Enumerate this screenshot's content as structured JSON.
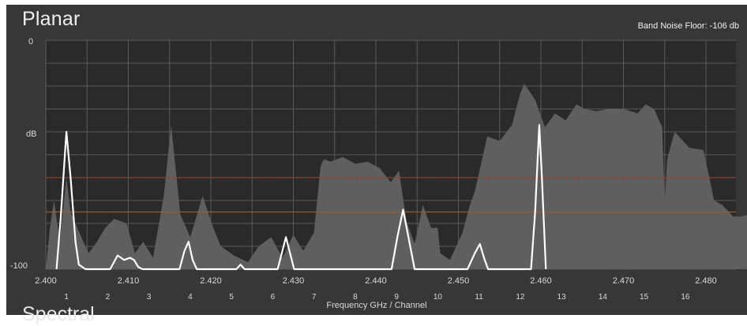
{
  "panel": {
    "title": "Planar",
    "noise_floor_label": "Band Noise Floor: -106 db",
    "next_section_title": "Spectral"
  },
  "colors": {
    "panel_bg": "#373737",
    "plot_bg": "#2a2a2a",
    "grid": "#5a5a5a",
    "energy_fill": "#5f5f5f",
    "signal_line": "#ffffff",
    "threshold_red": "#9b3a2e",
    "threshold_orange": "#9a5a30"
  },
  "chart_data": {
    "type": "line",
    "y_axis": {
      "label": "dB",
      "tick_top": "0",
      "tick_bottom": "-100",
      "ylim": [
        -100,
        0
      ]
    },
    "x_axis": {
      "label": "Frequency GHz / Channel",
      "frequency_ticks": [
        "2.400",
        "2.410",
        "2.420",
        "2.430",
        "2.440",
        "2.450",
        "2.460",
        "2.470",
        "2.480"
      ],
      "channel_ticks": [
        "1",
        "2",
        "3",
        "4",
        "5",
        "6",
        "7",
        "8",
        "9",
        "10",
        "11",
        "12",
        "13",
        "14",
        "15",
        "16"
      ],
      "xlim": [
        2.4,
        2.485
      ]
    },
    "grid": true,
    "thresholds_db": [
      -60,
      -75
    ],
    "series": [
      {
        "type": "area",
        "points": [
          [
            2.4,
            -100
          ],
          [
            2.4005,
            -82
          ],
          [
            2.401,
            -70
          ],
          [
            2.4017,
            -88
          ],
          [
            2.4025,
            -60
          ],
          [
            2.403,
            -75
          ],
          [
            2.4043,
            -86
          ],
          [
            2.4052,
            -93
          ],
          [
            2.4062,
            -88
          ],
          [
            2.4072,
            -82
          ],
          [
            2.4083,
            -78
          ],
          [
            2.4098,
            -80
          ],
          [
            2.4108,
            -93
          ],
          [
            2.4118,
            -88
          ],
          [
            2.413,
            -95
          ],
          [
            2.4143,
            -68
          ],
          [
            2.4152,
            -37
          ],
          [
            2.4163,
            -76
          ],
          [
            2.4175,
            -86
          ],
          [
            2.419,
            -68
          ],
          [
            2.4202,
            -81
          ],
          [
            2.4212,
            -90
          ],
          [
            2.4228,
            -94
          ],
          [
            2.4245,
            -97
          ],
          [
            2.4258,
            -90
          ],
          [
            2.4273,
            -86
          ],
          [
            2.4287,
            -95
          ],
          [
            2.43,
            -85
          ],
          [
            2.4312,
            -92
          ],
          [
            2.4325,
            -84
          ],
          [
            2.4333,
            -55
          ],
          [
            2.4337,
            -52
          ],
          [
            2.4345,
            -53
          ],
          [
            2.436,
            -51
          ],
          [
            2.4375,
            -54
          ],
          [
            2.439,
            -53
          ],
          [
            2.4405,
            -56
          ],
          [
            2.4418,
            -62
          ],
          [
            2.4428,
            -57
          ],
          [
            2.4437,
            -79
          ],
          [
            2.4447,
            -89
          ],
          [
            2.4457,
            -72
          ],
          [
            2.4467,
            -82
          ],
          [
            2.4475,
            -82
          ],
          [
            2.4478,
            -93
          ],
          [
            2.449,
            -96
          ],
          [
            2.4505,
            -84
          ],
          [
            2.4514,
            -72
          ],
          [
            2.452,
            -66
          ],
          [
            2.4535,
            -42
          ],
          [
            2.455,
            -44
          ],
          [
            2.4565,
            -37
          ],
          [
            2.4575,
            -23
          ],
          [
            2.458,
            -19
          ],
          [
            2.4593,
            -26
          ],
          [
            2.4605,
            -38
          ],
          [
            2.4617,
            -32
          ],
          [
            2.463,
            -35
          ],
          [
            2.4643,
            -28
          ],
          [
            2.4653,
            -30
          ],
          [
            2.4667,
            -31
          ],
          [
            2.4683,
            -30
          ],
          [
            2.47,
            -30
          ],
          [
            2.4717,
            -32
          ],
          [
            2.4727,
            -28
          ],
          [
            2.4737,
            -30
          ],
          [
            2.4747,
            -38
          ],
          [
            2.475,
            -71
          ],
          [
            2.4753,
            -52
          ],
          [
            2.4762,
            -40
          ],
          [
            2.478,
            -47
          ],
          [
            2.4797,
            -48
          ],
          [
            2.481,
            -70
          ],
          [
            2.482,
            -72
          ],
          [
            2.4833,
            -77
          ],
          [
            2.4843,
            -77
          ],
          [
            2.4853,
            -76
          ],
          [
            2.4853,
            -100
          ]
        ]
      },
      {
        "type": "line",
        "points": [
          [
            2.4013,
            -100
          ],
          [
            2.4018,
            -78
          ],
          [
            2.4025,
            -40
          ],
          [
            2.403,
            -60
          ],
          [
            2.4036,
            -88
          ],
          [
            2.404,
            -98
          ],
          [
            2.4048,
            -100
          ],
          [
            2.4055,
            -100
          ],
          [
            2.4078,
            -100
          ],
          [
            2.4087,
            -94
          ],
          [
            2.4095,
            -96
          ],
          [
            2.4102,
            -95
          ],
          [
            2.4107,
            -96
          ],
          [
            2.4112,
            -99
          ],
          [
            2.4117,
            -100
          ],
          [
            2.4162,
            -100
          ],
          [
            2.4168,
            -92
          ],
          [
            2.4173,
            -88
          ],
          [
            2.4178,
            -96
          ],
          [
            2.4183,
            -100
          ],
          [
            2.4231,
            -100
          ],
          [
            2.4236,
            -98
          ],
          [
            2.4241,
            -100
          ],
          [
            2.4281,
            -100
          ],
          [
            2.4286,
            -93
          ],
          [
            2.4291,
            -86
          ],
          [
            2.4296,
            -93
          ],
          [
            2.4301,
            -100
          ],
          [
            2.4419,
            -100
          ],
          [
            2.4426,
            -86
          ],
          [
            2.4433,
            -74
          ],
          [
            2.444,
            -87
          ],
          [
            2.4447,
            -100
          ],
          [
            2.4511,
            -100
          ],
          [
            2.452,
            -93
          ],
          [
            2.4526,
            -89
          ],
          [
            2.4531,
            -95
          ],
          [
            2.4536,
            -100
          ],
          [
            2.4588,
            -100
          ],
          [
            2.4593,
            -75
          ],
          [
            2.4598,
            -37
          ],
          [
            2.4601,
            -58
          ],
          [
            2.4606,
            -100
          ]
        ]
      }
    ]
  }
}
